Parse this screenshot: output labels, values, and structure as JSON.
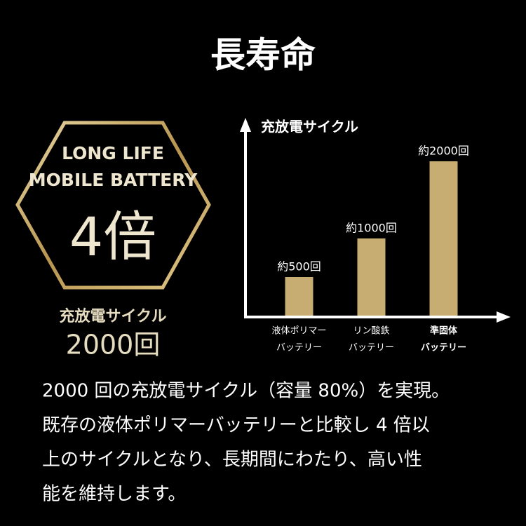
{
  "header": {
    "title": "長寿命"
  },
  "badge": {
    "line1": "LONG LIFE",
    "line2": "MOBILE BATTERY",
    "multiplier": "4倍",
    "caption": "充放電サイクル",
    "count": "2000回"
  },
  "chart_data": {
    "type": "bar",
    "title": "充放電サイクル",
    "categories": [
      [
        "液体ポリマー",
        "バッテリー"
      ],
      [
        "リン酸鉄",
        "バッテリー"
      ],
      [
        "準固体",
        "バッテリー"
      ]
    ],
    "values": [
      500,
      1000,
      2000
    ],
    "value_labels": [
      "約500回",
      "約1000回",
      "約2000回"
    ],
    "color": "#c8ad72",
    "ylim": [
      0,
      2500
    ]
  },
  "description": {
    "lines": [
      "2000 回の充放電サイクル（容量 80%）を実現。",
      "既存の液体ポリマーバッテリーと比較し 4 倍以",
      "上のサイクルとなり、長期間にわたり、高い性",
      "能を維持します。"
    ]
  }
}
